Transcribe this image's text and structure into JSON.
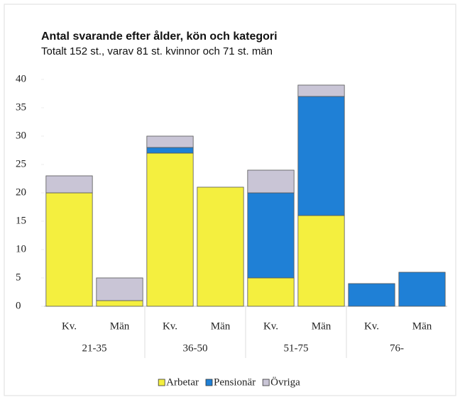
{
  "chart_data": {
    "type": "stacked_bar",
    "title": "Antal svarande efter ålder, kön och kategori",
    "subtitle": "Totalt 152 st., varav 81 st. kvinnor och 71 st. män",
    "categories": [
      "Kv.",
      "Män",
      "Kv.",
      "Män",
      "Kv.",
      "Män",
      "Kv.",
      "Män"
    ],
    "groups": [
      "21-35",
      "36-50",
      "51-75",
      "76-"
    ],
    "series": [
      {
        "name": "Arbetar",
        "color": "#f4ef3f",
        "values": [
          20,
          1,
          27,
          21,
          5,
          16,
          0,
          0
        ]
      },
      {
        "name": "Pensionär",
        "color": "#1f80d6",
        "values": [
          0,
          0,
          1,
          0,
          15,
          21,
          4,
          6
        ]
      },
      {
        "name": "Övriga",
        "color": "#c9c5d6",
        "values": [
          3,
          4,
          2,
          0,
          4,
          2,
          0,
          0
        ]
      }
    ],
    "ylim": [
      0,
      40
    ],
    "yticks": [
      0,
      5,
      10,
      15,
      20,
      25,
      30,
      35,
      40
    ],
    "legend": "bottom"
  }
}
